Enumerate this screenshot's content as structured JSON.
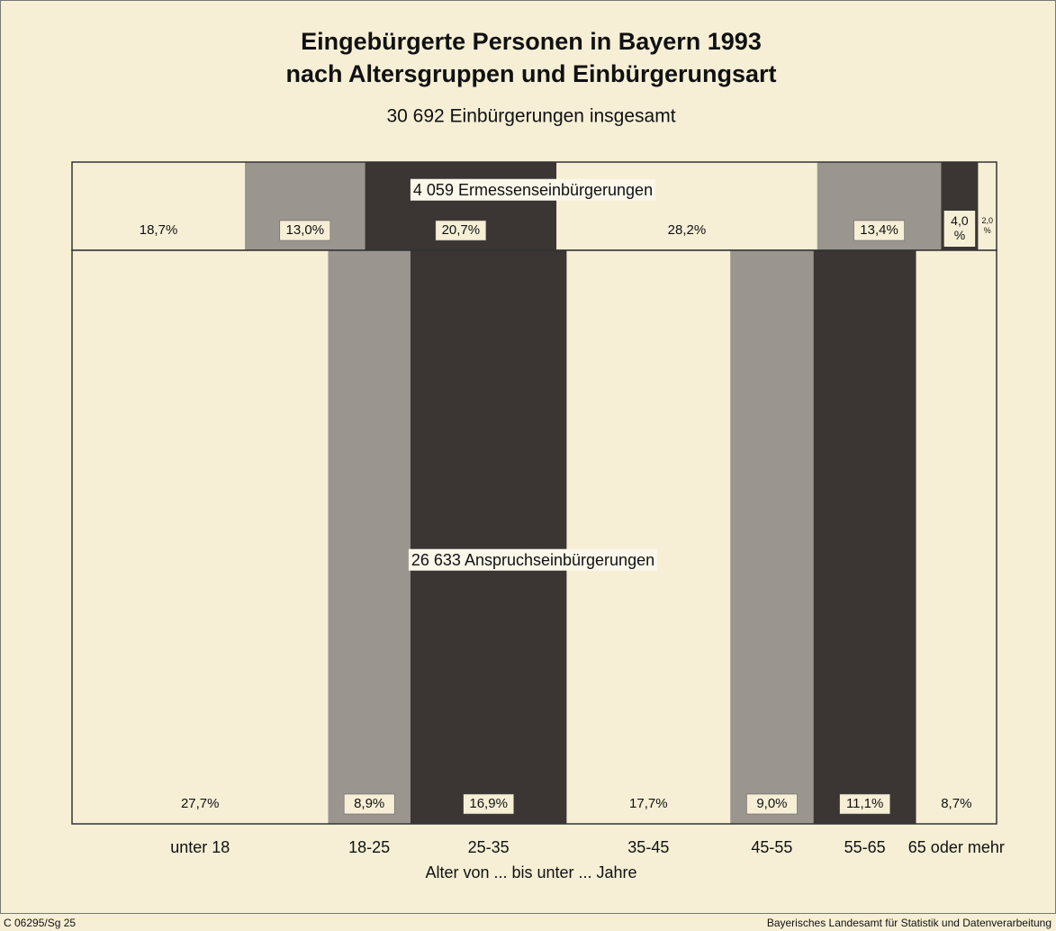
{
  "chart_data": {
    "type": "mekko",
    "title": "Eingebürgerte Personen in Bayern 1993",
    "title_line2": "nach Altersgruppen und Einbürgerungsart",
    "subtitle": "30 692 Einbürgerungen insgesamt",
    "x_label": "Alter von ... bis unter ... Jahre",
    "categories": [
      "unter 18",
      "18-25",
      "25-35",
      "35-45",
      "45-55",
      "55-65",
      "65 oder mehr"
    ],
    "colors": [
      "#f6efd6",
      "#9b9590",
      "#3b3533",
      "#f6efd6",
      "#9b9590",
      "#3b3533",
      "#f6efd6"
    ],
    "series": [
      {
        "name": "4 059 Ermessenseinbürgerungen",
        "values": [
          18.7,
          13.0,
          20.7,
          28.2,
          13.4,
          4.0,
          2.0
        ],
        "value_labels": [
          "18,7%",
          "13,0%",
          "20,7%",
          "28,2%",
          "13,4%",
          "4,0%",
          "2,0%"
        ]
      },
      {
        "name": "26 633 Anspruchseinbürgerungen",
        "values": [
          27.7,
          8.9,
          16.9,
          17.7,
          9.0,
          11.1,
          8.7
        ],
        "value_labels": [
          "27,7%",
          "8,9%",
          "16,9%",
          "17,7%",
          "9,0%",
          "11,1%",
          "8,7%"
        ]
      }
    ],
    "footer_left": "C 06295/Sg 25",
    "footer_right": "Bayerisches Landesamt für Statistik und Datenverarbeitung"
  }
}
